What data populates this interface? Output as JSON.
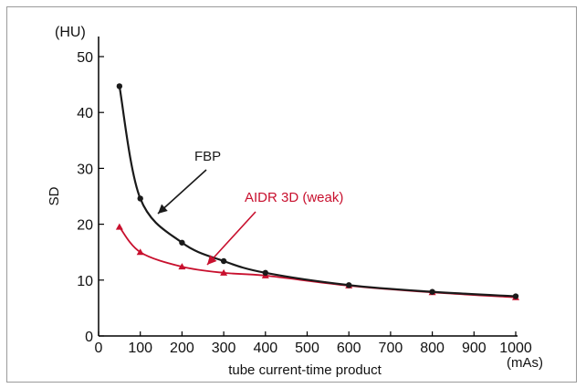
{
  "colors": {
    "fbp": "#1a1a1a",
    "aidr": "#c8102e",
    "axis": "#000000",
    "frame": "#9a9a9a"
  },
  "chart_data": {
    "type": "line",
    "title": "",
    "xlabel": "tube current-time product",
    "xunit": "(mAs)",
    "ylabel": "SD",
    "yunit": "(HU)",
    "xlim": [
      0,
      1000
    ],
    "ylim": [
      0,
      50
    ],
    "xticks": [
      0,
      100,
      200,
      300,
      400,
      500,
      600,
      700,
      800,
      900,
      1000
    ],
    "yticks": [
      0,
      10,
      20,
      30,
      40,
      50
    ],
    "grid": false,
    "series": [
      {
        "name": "FBP",
        "color": "#1a1a1a",
        "x": [
          50,
          100,
          200,
          300,
          400,
          600,
          800,
          1000
        ],
        "y": [
          44.7,
          24.6,
          16.7,
          13.4,
          11.3,
          9.1,
          7.9,
          7.1
        ]
      },
      {
        "name": "AIDR 3D (weak)",
        "color": "#c8102e",
        "x": [
          50,
          100,
          200,
          300,
          400,
          600,
          800,
          1000
        ],
        "y": [
          19.5,
          15.0,
          12.4,
          11.3,
          10.8,
          9.0,
          7.8,
          6.9
        ]
      }
    ],
    "annotations": [
      {
        "text": "FBP",
        "target": "FBP"
      },
      {
        "text": "AIDR 3D (weak)",
        "target": "AIDR 3D (weak)"
      }
    ]
  }
}
